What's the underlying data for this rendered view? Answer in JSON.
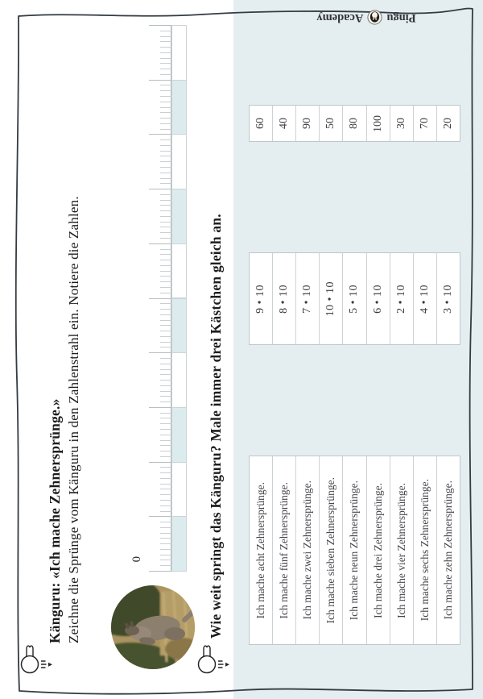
{
  "logo": {
    "brand_left": "Pingu",
    "brand_right": "Academy"
  },
  "task1": {
    "title": "Känguru: «Ich mache Zehnersprünge.»",
    "instruction": "Zeichne die Sprünge vom Känguru in den Zahlenstrahl ein. Notiere die Zahlen.",
    "number_line": {
      "min": 0,
      "max": 100,
      "major_every": 10,
      "segments": 10,
      "zero_label": "0"
    }
  },
  "task2": {
    "title": "Wie weit springt das Känguru? Male immer drei Kästchen gleich an.",
    "numbers": [
      "60",
      "40",
      "90",
      "50",
      "80",
      "100",
      "30",
      "70",
      "20"
    ],
    "products": [
      "9 • 10",
      "8 • 10",
      "7 • 10",
      "10 • 10",
      "5 • 10",
      "6 • 10",
      "2 • 10",
      "4 • 10",
      "3 • 10"
    ],
    "sentences": [
      "Ich mache acht Zehnersprünge.",
      "Ich mache fünf Zehnersprünge.",
      "Ich mache zwei Zehnersprünge.",
      "Ich mache sieben Zehnersprünge.",
      "Ich mache neun Zehnersprünge.",
      "Ich mache drei Zehnersprünge.",
      "Ich mache vier Zehnersprünge.",
      "Ich mache sechs Zehnersprünge.",
      "Ich mache zehn Zehnersprünge."
    ]
  },
  "colors": {
    "panel_blue": "#e4eef0",
    "decade_blue": "#dcecee",
    "table_border": "#c8ced1",
    "ink": "#343b42"
  }
}
